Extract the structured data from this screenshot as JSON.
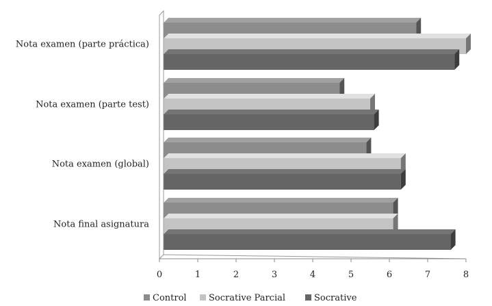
{
  "chart_data": {
    "type": "bar",
    "orientation": "horizontal",
    "style": "3d",
    "categories": [
      "Nota examen (parte práctica)",
      "Nota examen (parte test)",
      "Nota examen (global)",
      "Nota final asignatura"
    ],
    "series": [
      {
        "name": "Control",
        "values": [
          6.7,
          4.7,
          5.4,
          6.1
        ],
        "color": "#8c8c8c"
      },
      {
        "name": "Socrative Parcial",
        "values": [
          8.0,
          5.5,
          6.3,
          6.1
        ],
        "color": "#c4c4c4"
      },
      {
        "name": "Socrative",
        "values": [
          7.7,
          5.6,
          6.3,
          7.6
        ],
        "color": "#656565"
      }
    ],
    "xlim": [
      0,
      8
    ],
    "x_ticks": [
      "0",
      "1",
      "2",
      "3",
      "4",
      "5",
      "6",
      "7",
      "8"
    ],
    "grid": false,
    "legend_position": "bottom"
  }
}
